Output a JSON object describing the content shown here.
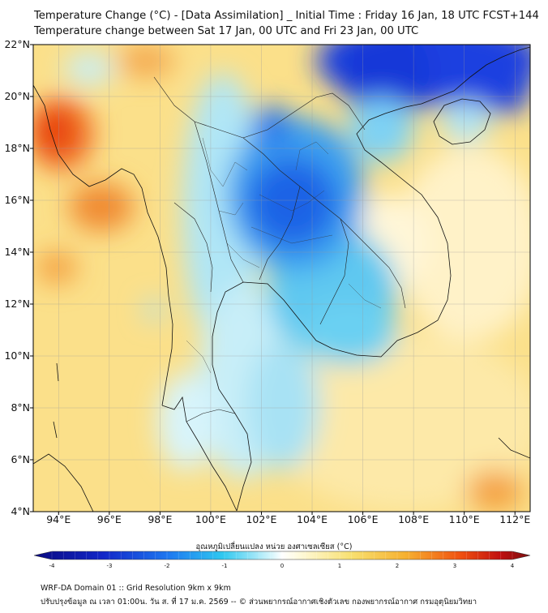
{
  "title_line1": "Temperature Change (°C) - [Data Assimilation] _ Initial Time : Friday 16 Jan, 18 UTC FCST+144",
  "title_line2": "Temperature change between Sat 17 Jan, 00 UTC and Fri 23 Jan, 00 UTC",
  "lat_labels": [
    "22°N",
    "20°N",
    "18°N",
    "16°N",
    "14°N",
    "12°N",
    "10°N",
    "8°N",
    "6°N",
    "4°N"
  ],
  "lon_labels": [
    "94°E",
    "96°E",
    "98°E",
    "100°E",
    "102°E",
    "104°E",
    "106°E",
    "108°E",
    "110°E",
    "112°E"
  ],
  "lat_values": [
    22,
    20,
    18,
    16,
    14,
    12,
    10,
    8,
    6,
    4
  ],
  "lon_values": [
    94,
    96,
    98,
    100,
    102,
    104,
    106,
    108,
    110,
    112
  ],
  "colorbar": {
    "title": "อุณหภูมิเปลี่ยนแปลง หน่วย องศาเซลเซียส (°C)",
    "min": -4,
    "max": 4,
    "ticks": [
      "-4",
      "-3",
      "-2",
      "-1",
      "0",
      "1",
      "2",
      "3",
      "4"
    ],
    "colors": {
      "cold_max": "#0a0a80",
      "cold": "#1e50e8",
      "cool": "#2fc0f0",
      "zero": "#ffffff",
      "warm": "#f8e070",
      "hot": "#f09020",
      "hot_max": "#7a1010"
    }
  },
  "footer_line1": "WRF-DA Domain 01 :: Grid Resolution 9km x 9km",
  "footer_line2": "ปรับปรุงข้อมูล ณ เวลา 01:00น. วัน ส. ที่ 17 ม.ค. 2569 -- © ส่วนพยากรณ์อากาศเชิงตัวเลข กองพยากรณ์อากาศ กรมอุตุนิยมวิทยา"
}
